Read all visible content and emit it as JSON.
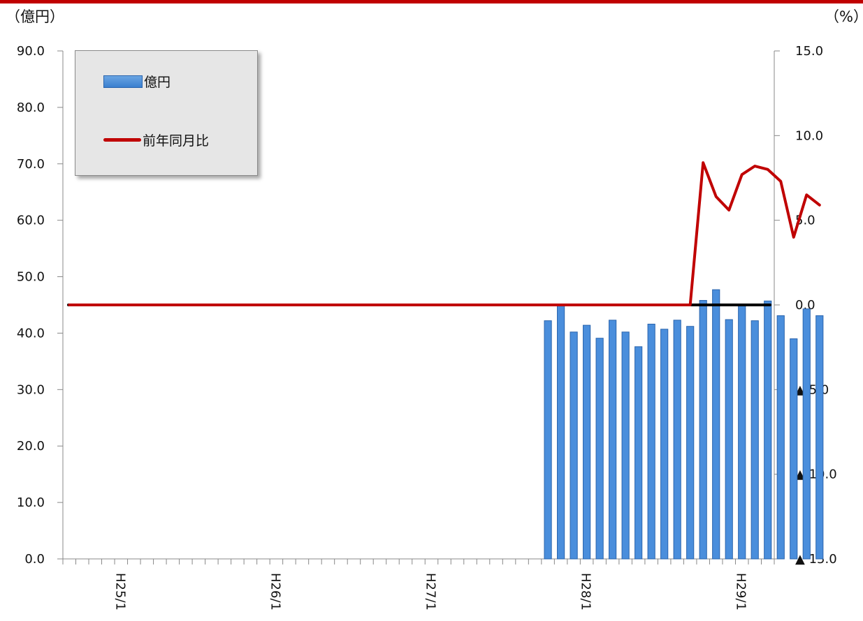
{
  "units": {
    "left": "（億円）",
    "right": "（%）"
  },
  "legend": {
    "bar_label": "億円",
    "line_label": "前年同月比"
  },
  "colors": {
    "bar": "#4a8edc",
    "bar_edge": "#2a64ad",
    "line": "#c00000",
    "baseline": "#000000",
    "top_band": "#c00000"
  },
  "chart_data": {
    "type": "bar",
    "left_axis": {
      "ylim": [
        0,
        90
      ],
      "tick_labels": [
        "0.0",
        "10.0",
        "20.0",
        "30.0",
        "40.0",
        "50.0",
        "60.0",
        "70.0",
        "80.0",
        "90.0"
      ]
    },
    "right_axis": {
      "ylim": [
        -15,
        15
      ],
      "tick_labels": [
        "▲ 15.0",
        "▲ 10.0",
        "▲ 5.0",
        "0.0",
        "5.0",
        "10.0",
        "15.0"
      ]
    },
    "x_tick_labels": [
      "H25/1",
      "H26/1",
      "H27/1",
      "H28/1",
      "H29/1"
    ],
    "series": [
      {
        "name": "億円",
        "type": "bar",
        "axis": "left",
        "x": [
          "H27/10",
          "H27/11",
          "H27/12",
          "H28/1",
          "H28/2",
          "H28/3",
          "H28/4",
          "H28/5",
          "H28/6",
          "H28/7",
          "H28/8",
          "H28/9",
          "H28/10",
          "H28/11",
          "H28/12",
          "H29/1",
          "H29/2",
          "H29/3",
          "H29/4",
          "H29/5",
          "H29/6",
          "H29/7"
        ],
        "values": [
          42.2,
          45.0,
          40.2,
          41.4,
          39.1,
          42.3,
          40.2,
          37.6,
          41.6,
          40.7,
          42.3,
          41.2,
          45.8,
          47.7,
          42.4,
          44.9,
          42.2,
          45.7,
          43.1,
          39.0,
          44.3,
          43.1
        ]
      },
      {
        "name": "前年同月比",
        "type": "line",
        "axis": "right",
        "x": [
          "H25/1 .. H28/9"
        ],
        "values_note_omitted": null,
        "points": [
          [
            "H28/9",
            0.0
          ],
          [
            "H28/10",
            8.4
          ],
          [
            "H28/11",
            6.4
          ],
          [
            "H28/12",
            5.6
          ],
          [
            "H29/1",
            7.7
          ],
          [
            "H29/2",
            8.2
          ],
          [
            "H29/3",
            8.0
          ],
          [
            "H29/4",
            7.3
          ],
          [
            "H29/5",
            4.0
          ],
          [
            "H29/6",
            6.5
          ],
          [
            "H29/7",
            5.9
          ]
        ]
      }
    ]
  }
}
